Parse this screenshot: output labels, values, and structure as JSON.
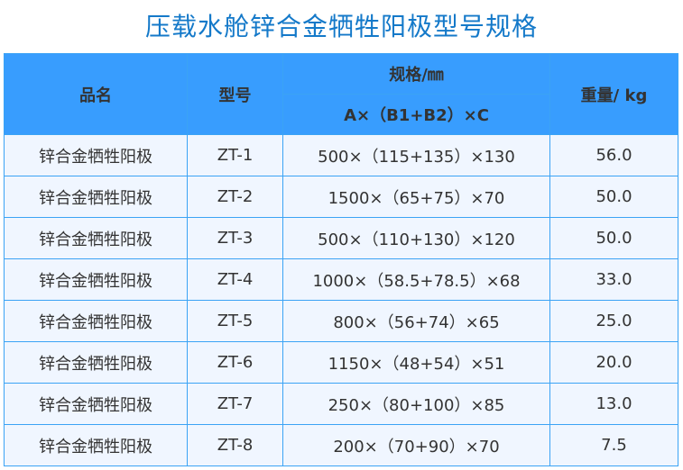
{
  "title": "压载水舱锌合金牺牲阳极型号规格",
  "header": {
    "name": "品名",
    "model": "型号",
    "spec": "规格/㎜",
    "spec_formula": "A×（B1+B2）×C",
    "weight": "重量/ kg"
  },
  "rows": [
    {
      "name": "锌合金牺牲阳极",
      "model": "ZT-1",
      "spec": "500×（115+135）×130",
      "weight": "56.0"
    },
    {
      "name": "锌合金牺牲阳极",
      "model": "ZT-2",
      "spec": "1500×（65+75）×70",
      "weight": "50.0"
    },
    {
      "name": "锌合金牺牲阳极",
      "model": "ZT-3",
      "spec": "500×（110+130）×120",
      "weight": "50.0"
    },
    {
      "name": "锌合金牺牲阳极",
      "model": "ZT-4",
      "spec": "1000×（58.5+78.5）×68",
      "weight": "33.0"
    },
    {
      "name": "锌合金牺牲阳极",
      "model": "ZT-5",
      "spec": "800×（56+74）×65",
      "weight": "25.0"
    },
    {
      "name": "锌合金牺牲阳极",
      "model": "ZT-6",
      "spec": "1150×（48+54）×51",
      "weight": "20.0"
    },
    {
      "name": "锌合金牺牲阳极",
      "model": "ZT-7",
      "spec": "250×（80+100）×85",
      "weight": "13.0"
    },
    {
      "name": "锌合金牺牲阳极",
      "model": "ZT-8",
      "spec": "200×（70+90）×70",
      "weight": "7.5"
    }
  ],
  "colors": {
    "title": "#1479c9",
    "header_bg": "#389dfe",
    "row_bg": "#f0f6ff",
    "border": "#3ba3f5"
  }
}
